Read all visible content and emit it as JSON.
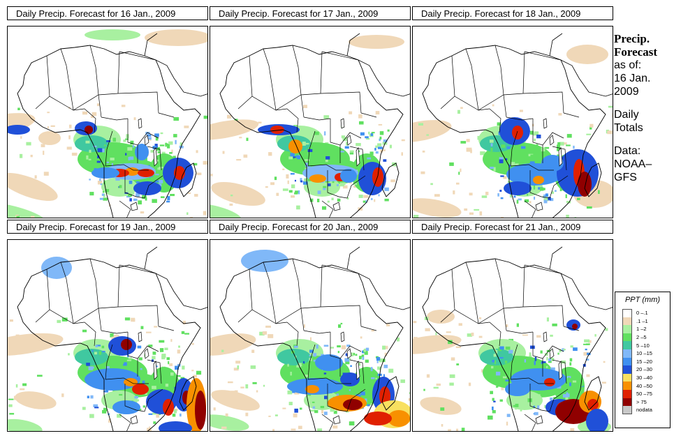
{
  "panels": [
    {
      "title": "Daily Precip. Forecast for  16 Jan., 2009"
    },
    {
      "title": "Daily Precip. Forecast for  17 Jan., 2009"
    },
    {
      "title": "Daily Precip. Forecast for  18 Jan., 2009"
    },
    {
      "title": "Daily Precip. Forecast for  19 Jan., 2009"
    },
    {
      "title": "Daily Precip. Forecast for  20 Jan., 2009"
    },
    {
      "title": "Daily Precip. Forecast for  21 Jan., 2009"
    }
  ],
  "sidebar": {
    "heading1": "Precip.",
    "heading2": "Forecast",
    "asof1": "as of:",
    "asof2": "16 Jan.",
    "asof3": "2009",
    "daily1": "Daily",
    "daily2": "Totals",
    "data1": "Data:",
    "data2": "NOAA–",
    "data3": "GFS"
  },
  "legend": {
    "title": "PPT (mm)",
    "items": [
      {
        "label": "0 –.1",
        "color": "#ffffff"
      },
      {
        "label": ".1 –1",
        "color": "#f0d8b8"
      },
      {
        "label": "1 –2",
        "color": "#a8f0a0"
      },
      {
        "label": "2 –5",
        "color": "#60e060"
      },
      {
        "label": "5 –10",
        "color": "#40c8a0"
      },
      {
        "label": "10 –15",
        "color": "#80b8f8"
      },
      {
        "label": "15 –20",
        "color": "#4090f0"
      },
      {
        "label": "20 –30",
        "color": "#2050d8"
      },
      {
        "label": "30 –40",
        "color": "#f8e060"
      },
      {
        "label": "40 –50",
        "color": "#f89000"
      },
      {
        "label": "50 –75",
        "color": "#e02000"
      },
      {
        "label": "> 75",
        "color": "#900000"
      },
      {
        "label": "nodata",
        "color": "#c8c8c8"
      }
    ]
  }
}
